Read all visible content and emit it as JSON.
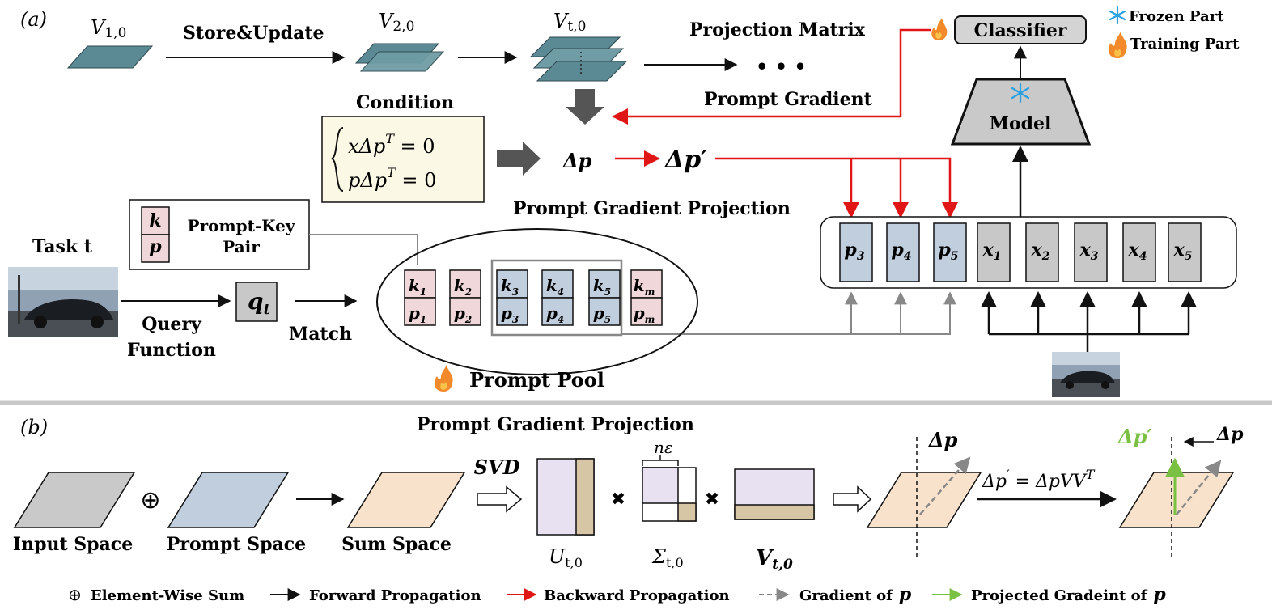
{
  "panel_a": {
    "label": "(a)",
    "v1": "V",
    "v1_sub": "1,0",
    "v2": "V",
    "v2_sub": "2,0",
    "vt": "V",
    "vt_sub": "t,0",
    "store_update": "Store&Update",
    "projection_matrix": "Projection Matrix",
    "dots": "• • •",
    "classifier": "Classifier",
    "legend_frozen": "Frozen Part",
    "legend_training": "Training Part",
    "model": "Model",
    "prompt_gradient": "Prompt Gradient",
    "condition": "Condition",
    "cond_eq1": "xΔp",
    "cond_eq1_rhs": " = 0",
    "cond_eq2": "pΔp",
    "cond_eq2_rhs": " = 0",
    "cond_sup": "T",
    "delta_p": "Δp",
    "delta_p_prime": "Δp′",
    "pgp_label": "Prompt Gradient Projection",
    "pk_k": "k",
    "pk_p": "p",
    "pk_label_1": "Prompt-Key",
    "pk_label_2": "Pair",
    "task": "Task t",
    "query_function_1": "Query",
    "query_function_2": "Function",
    "q": "q",
    "q_sub": "t",
    "match": "Match",
    "pool_keys": [
      {
        "k": "k",
        "ksub": "1",
        "p": "p",
        "psub": "1"
      },
      {
        "k": "k",
        "ksub": "2",
        "p": "p",
        "psub": "2"
      },
      {
        "k": "k",
        "ksub": "3",
        "p": "p",
        "psub": "3"
      },
      {
        "k": "k",
        "ksub": "4",
        "p": "p",
        "psub": "4"
      },
      {
        "k": "k",
        "ksub": "5",
        "p": "p",
        "psub": "5"
      },
      {
        "k": "k",
        "ksub": "m",
        "p": "p",
        "psub": "m"
      }
    ],
    "prompt_pool": "Prompt Pool",
    "tokens": [
      {
        "v": "p",
        "sub": "3"
      },
      {
        "v": "p",
        "sub": "4"
      },
      {
        "v": "p",
        "sub": "5"
      },
      {
        "v": "x",
        "sub": "1"
      },
      {
        "v": "x",
        "sub": "2"
      },
      {
        "v": "x",
        "sub": "3"
      },
      {
        "v": "x",
        "sub": "4"
      },
      {
        "v": "x",
        "sub": "5"
      }
    ]
  },
  "panel_b": {
    "label": "(b)",
    "title": "Prompt Gradient Projection",
    "input_space": "Input Space",
    "oplus": "⊕",
    "prompt_space": "Prompt Space",
    "sum_space": "Sum Space",
    "svd": "SVD",
    "u": "U",
    "u_sub": "t,0",
    "sigma": "Σ",
    "sigma_sub": "t,0",
    "n_eps": "nε",
    "v": "V",
    "v_sub": "t,0",
    "times": "✖",
    "delta_p": "Δp",
    "delta_p_prime": "Δp′",
    "formula_lhs": "Δp",
    "formula_prime": "′",
    "formula_rhs": " = ΔpVV",
    "formula_sup": "T"
  },
  "legend": {
    "oplus": "⊕",
    "element_wise_sum": "Element-Wise Sum",
    "forward": "Forward Propagation",
    "backward": "Backward Propagation",
    "gradient_of": "Gradient of",
    "projected": "Projected Gradeint of",
    "p_symbol": "p"
  },
  "colors": {
    "plane_teal": "#5b8a94",
    "prompt_blue": "#c1cedd",
    "prompt_pink": "#f0d7da",
    "token_gray": "#c8c8c8",
    "backward_red": "#e01616",
    "projected_green": "#7ac143",
    "condition_bg": "#fbf8e6",
    "sum_peach": "#f9e2cc",
    "u_lilac": "#e7e1f2",
    "tan": "#d6c6a5",
    "snow_blue": "#2aa1e2",
    "flame_orange": "#f28a2b"
  }
}
